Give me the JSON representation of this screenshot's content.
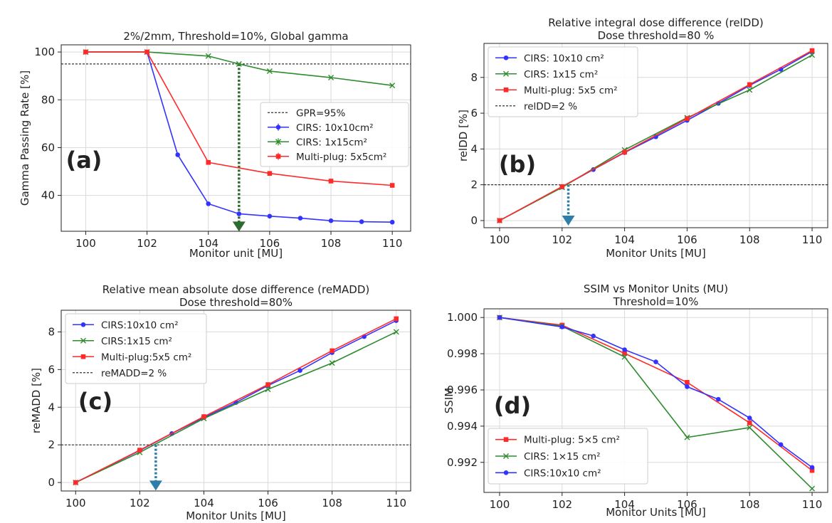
{
  "chart_data": [
    {
      "type": "line",
      "panel_label": "(a)",
      "title": "2%/2mm, Threshold=10%, Global gamma",
      "xlabel": "Monitor unit [MU]",
      "ylabel": "Gamma Passing Rate [%]",
      "xlim": [
        99.2,
        110.6
      ],
      "ylim": [
        25,
        103
      ],
      "xticks": [
        100,
        102,
        104,
        106,
        108,
        110
      ],
      "yticks": [
        40,
        60,
        80,
        100
      ],
      "grid": true,
      "legend_position": "center-right",
      "reference_lines": [
        {
          "name": "GPR=95%",
          "y": 95,
          "color": "#333333"
        }
      ],
      "series": [
        {
          "name": "CIRS: 10x10cm²",
          "color": "#3333ff",
          "marker": "circle",
          "x": [
            100,
            102,
            103,
            104,
            105,
            106,
            107,
            108,
            109,
            110
          ],
          "y": [
            100,
            100,
            57,
            36.5,
            32.3,
            31.3,
            30.5,
            29.4,
            29,
            28.8
          ]
        },
        {
          "name": "CIRS: 1x15cm²",
          "color": "#2e8b2e",
          "marker": "x",
          "x": [
            100,
            102,
            104,
            105,
            106,
            108,
            110
          ],
          "y": [
            100,
            100,
            98.3,
            95,
            92,
            89.3,
            86
          ]
        },
        {
          "name": "Multi-plug: 5x5cm²",
          "color": "#ff2a2a",
          "marker": "square",
          "x": [
            100,
            102,
            104,
            106,
            108,
            110
          ],
          "y": [
            100,
            100,
            53.8,
            49.2,
            46,
            44.2
          ]
        }
      ],
      "annotations": [
        {
          "type": "arrow",
          "x": 105,
          "from_y": 95,
          "to_y": 25.5,
          "color": "#2e6b2e"
        }
      ]
    },
    {
      "type": "line",
      "panel_label": "(b)",
      "title": "Relative integral dose difference (relDD)",
      "subtitle": "Dose threshold=80 %",
      "xlabel": "Monitor Units [MU]",
      "ylabel": "relDD [%]",
      "xlim": [
        99.5,
        110.5
      ],
      "ylim": [
        -0.4,
        9.9
      ],
      "xticks": [
        100,
        102,
        104,
        106,
        108,
        110
      ],
      "yticks": [
        0,
        2,
        4,
        6,
        8
      ],
      "grid": true,
      "legend_position": "top-left",
      "reference_lines": [
        {
          "name": "relDD=2 %",
          "y": 2,
          "color": "#333333"
        }
      ],
      "series": [
        {
          "name": "CIRS: 10x10 cm²",
          "color": "#3333ff",
          "marker": "circle",
          "x": [
            100,
            102,
            103,
            104,
            105,
            106,
            107,
            108,
            109,
            110
          ],
          "y": [
            0,
            1.88,
            2.85,
            3.8,
            4.68,
            5.6,
            6.55,
            7.55,
            8.45,
            9.45
          ]
        },
        {
          "name": "CIRS: 1x15 cm²",
          "color": "#2e8b2e",
          "marker": "x",
          "x": [
            100,
            102,
            104,
            106,
            108,
            110
          ],
          "y": [
            0,
            1.85,
            3.95,
            5.75,
            7.3,
            9.25
          ]
        },
        {
          "name": "Multi-plug: 5x5 cm²",
          "color": "#ff2a2a",
          "marker": "square",
          "x": [
            100,
            102,
            104,
            106,
            108,
            110
          ],
          "y": [
            0,
            1.9,
            3.82,
            5.7,
            7.6,
            9.5
          ]
        }
      ],
      "annotations": [
        {
          "type": "arrow",
          "x": 102.2,
          "from_y": 2,
          "to_y": -0.2,
          "color": "#2e7fa8"
        }
      ]
    },
    {
      "type": "line",
      "panel_label": "(c)",
      "title": "Relative mean absolute dose difference (reMADD)",
      "subtitle": "Dose threshold=80%",
      "xlabel": "Monitor Units [MU]",
      "ylabel": "reMADD [%]",
      "xlim": [
        99.55,
        110.45
      ],
      "ylim": [
        -0.45,
        9.15
      ],
      "xticks": [
        100,
        102,
        104,
        106,
        108,
        110
      ],
      "yticks": [
        0,
        2,
        4,
        6,
        8
      ],
      "grid": true,
      "legend_position": "top-left",
      "reference_lines": [
        {
          "name": "reMADD=2 %",
          "y": 2,
          "color": "#333333"
        }
      ],
      "series": [
        {
          "name": "CIRS:10x10 cm²",
          "color": "#3333ff",
          "marker": "circle",
          "x": [
            100,
            102,
            103,
            104,
            105,
            106,
            107,
            108,
            109,
            110
          ],
          "y": [
            0,
            1.7,
            2.6,
            3.45,
            4.25,
            5.15,
            5.95,
            6.9,
            7.75,
            8.6
          ]
        },
        {
          "name": "CIRS:1x15 cm²",
          "color": "#2e8b2e",
          "marker": "x",
          "x": [
            100,
            102,
            104,
            106,
            108,
            110
          ],
          "y": [
            0,
            1.6,
            3.4,
            4.95,
            6.35,
            8
          ]
        },
        {
          "name": "Multi-plug:5x5 cm²",
          "color": "#ff2a2a",
          "marker": "square",
          "x": [
            100,
            102,
            104,
            106,
            108,
            110
          ],
          "y": [
            0,
            1.72,
            3.5,
            5.2,
            7,
            8.7
          ]
        }
      ],
      "annotations": [
        {
          "type": "arrow",
          "x": 102.5,
          "from_y": 2,
          "to_y": -0.35,
          "color": "#2e7fa8"
        }
      ]
    },
    {
      "type": "line",
      "panel_label": "(d)",
      "title": "SSIM vs Monitor Units (MU)",
      "subtitle": "Threshold=10%",
      "xlabel": "Monitor Units [MU]",
      "ylabel": "SSIM",
      "xlim": [
        99.5,
        110.5
      ],
      "ylim": [
        0.99034,
        1.00048
      ],
      "xticks": [
        100,
        102,
        104,
        106,
        108,
        110
      ],
      "yticks": [
        0.992,
        0.994,
        0.996,
        0.998,
        1.0
      ],
      "ytick_labels": [
        "0.992",
        "0.994",
        "0.996",
        "0.998",
        "1.000"
      ],
      "grid": true,
      "legend_position": "bottom-left",
      "series": [
        {
          "name": "Multi-plug: 5×5 cm²",
          "color": "#ff2a2a",
          "marker": "square",
          "x": [
            100,
            102,
            104,
            106,
            108,
            110
          ],
          "y": [
            1.0,
            0.99958,
            0.99802,
            0.99642,
            0.99418,
            0.99155
          ]
        },
        {
          "name": "CIRS: 1×15 cm²",
          "color": "#2e8b2e",
          "marker": "x",
          "x": [
            100,
            102,
            104,
            106,
            108,
            110
          ],
          "y": [
            1.0,
            0.99952,
            0.99782,
            0.99338,
            0.99392,
            0.99055
          ]
        },
        {
          "name": "CIRS:10x10 cm²",
          "color": "#3333ff",
          "marker": "circle",
          "x": [
            100,
            102,
            103,
            104,
            105,
            106,
            107,
            108,
            109,
            110
          ],
          "y": [
            1.0,
            0.99948,
            0.99898,
            0.99822,
            0.99755,
            0.99618,
            0.99548,
            0.99445,
            0.99298,
            0.99172
          ]
        }
      ]
    }
  ]
}
